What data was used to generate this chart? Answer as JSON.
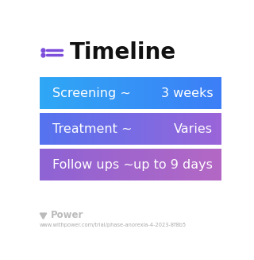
{
  "title": "Timeline",
  "background_color": "#ffffff",
  "title_fontsize": 20,
  "title_color": "#111111",
  "title_icon_color": "#7c4ddb",
  "rows": [
    {
      "label": "Screening ~",
      "value": "3 weeks",
      "color_left": "#2fa8f5",
      "color_right": "#3d7ef7"
    },
    {
      "label": "Treatment ~",
      "value": "Varies",
      "color_left": "#5573f0",
      "color_right": "#9b65d8"
    },
    {
      "label": "Follow ups ~",
      "value": "up to 9 days",
      "color_left": "#8e63d5",
      "color_right": "#b468c4"
    }
  ],
  "footer_text": "Power",
  "footer_url": "www.withpower.com/trial/phase-anorexia-4-2023-8f8b5",
  "text_color": "#ffffff",
  "text_fontsize": 11.5
}
